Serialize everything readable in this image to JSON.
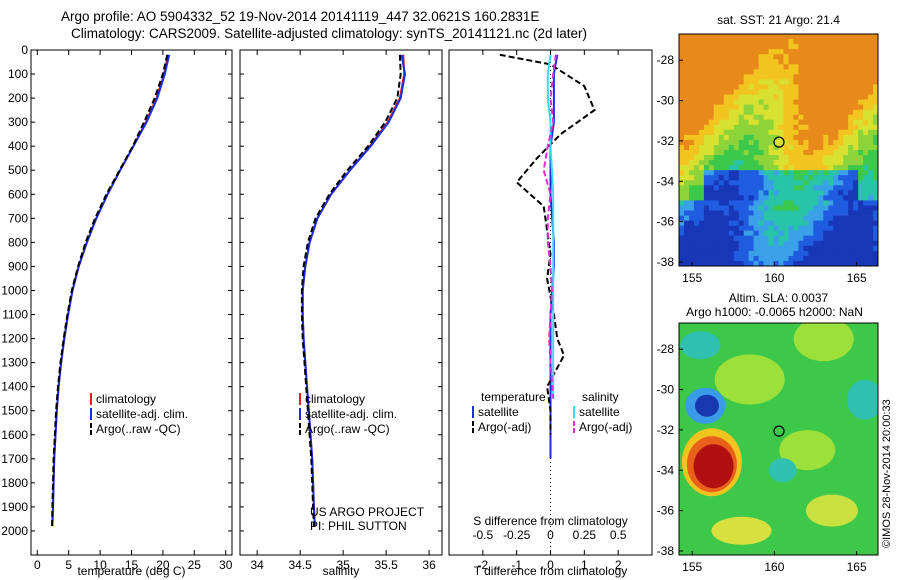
{
  "header": {
    "line1": "Argo profile: AO 5904332_52 19-Nov-2014 20141119_447 32.0621S 160.2831E",
    "line2": "Climatology: CARS2009. Satellite-adjusted climatology: synTS_20141121.nc (2d later)"
  },
  "colors": {
    "climatology": "#e02020",
    "satellite": "#1a2de0",
    "argo": "#000000",
    "sal_satellite": "#33e0f0",
    "sal_argo": "#e030d0"
  },
  "chart_data": [
    {
      "type": "line",
      "id": "temperature",
      "xlabel": "temperature (deg C)",
      "ylabel": "",
      "xlim": [
        -1,
        31
      ],
      "ylim": [
        0,
        2100
      ],
      "y_reversed": true,
      "xticks": [
        0,
        5,
        10,
        15,
        20,
        25,
        30
      ],
      "yticks": [
        0,
        100,
        200,
        300,
        400,
        500,
        600,
        700,
        800,
        900,
        1000,
        1100,
        1200,
        1300,
        1400,
        1500,
        1600,
        1700,
        1800,
        1900,
        2000
      ],
      "legend": [
        "climatology",
        "satellite-adj. clim.",
        "Argo(..raw -QC)"
      ],
      "legend_position": "lower-center",
      "series": [
        {
          "name": "climatology",
          "color": "#e02020",
          "style": "solid",
          "x": [
            20.8,
            20.2,
            19.0,
            17.3,
            15.3,
            13.2,
            11.2,
            9.4,
            7.9,
            6.6,
            5.6,
            4.9,
            4.3,
            3.8,
            3.4,
            3.1,
            2.9,
            2.7,
            2.6,
            2.5,
            2.4
          ],
          "y": [
            20,
            100,
            200,
            300,
            400,
            500,
            600,
            700,
            800,
            900,
            1000,
            1100,
            1200,
            1300,
            1400,
            1500,
            1600,
            1700,
            1800,
            1900,
            1980
          ]
        },
        {
          "name": "satellite-adj. clim.",
          "color": "#1a2de0",
          "style": "solid",
          "x": [
            21.0,
            20.3,
            19.1,
            17.4,
            15.3,
            13.2,
            11.2,
            9.4,
            7.9,
            6.6,
            5.6,
            4.9,
            4.3,
            3.8,
            3.4,
            3.1,
            2.9,
            2.7,
            2.6,
            2.5,
            2.4
          ],
          "y": [
            20,
            100,
            200,
            300,
            400,
            500,
            600,
            700,
            800,
            900,
            1000,
            1100,
            1200,
            1300,
            1400,
            1500,
            1600,
            1700,
            1800,
            1900,
            1980
          ]
        },
        {
          "name": "Argo(..raw -QC)",
          "color": "#000000",
          "style": "dashed",
          "x": [
            20.7,
            20.0,
            18.7,
            17.0,
            15.2,
            13.1,
            11.0,
            9.2,
            7.7,
            6.5,
            5.5,
            4.8,
            4.2,
            3.7,
            3.3,
            3.0,
            2.8,
            2.6,
            2.5,
            2.4,
            2.35
          ],
          "y": [
            20,
            100,
            200,
            300,
            400,
            500,
            600,
            700,
            800,
            900,
            1000,
            1100,
            1200,
            1300,
            1400,
            1500,
            1600,
            1700,
            1800,
            1900,
            1980
          ]
        }
      ]
    },
    {
      "type": "line",
      "id": "salinity",
      "xlabel": "salinity",
      "xlim": [
        33.8,
        36.15
      ],
      "ylim": [
        0,
        2100
      ],
      "y_reversed": true,
      "xticks": [
        34,
        34.5,
        35,
        35.5,
        36
      ],
      "legend": [
        "climatology",
        "satellite-adj. clim.",
        "Argo(..raw -QC)"
      ],
      "legend_position": "lower-center",
      "annotation": [
        "US ARGO PROJECT",
        "PI: PHIL SUTTON"
      ],
      "series": [
        {
          "name": "climatology",
          "color": "#e02020",
          "style": "solid",
          "x": [
            35.7,
            35.71,
            35.66,
            35.52,
            35.31,
            35.08,
            34.86,
            34.7,
            34.61,
            34.56,
            34.53,
            34.53,
            34.54,
            34.56,
            34.58,
            34.6,
            34.62,
            34.64,
            34.65,
            34.66,
            34.67
          ],
          "y": [
            20,
            100,
            200,
            300,
            400,
            500,
            600,
            700,
            800,
            900,
            1000,
            1100,
            1200,
            1300,
            1400,
            1500,
            1600,
            1700,
            1800,
            1900,
            1980
          ]
        },
        {
          "name": "satellite-adj. clim.",
          "color": "#1a2de0",
          "style": "solid",
          "x": [
            35.68,
            35.72,
            35.67,
            35.53,
            35.32,
            35.08,
            34.86,
            34.7,
            34.61,
            34.56,
            34.53,
            34.53,
            34.54,
            34.56,
            34.58,
            34.6,
            34.62,
            34.64,
            34.65,
            34.66,
            34.67
          ],
          "y": [
            20,
            100,
            200,
            300,
            400,
            500,
            600,
            700,
            800,
            900,
            1000,
            1100,
            1200,
            1300,
            1400,
            1500,
            1600,
            1700,
            1800,
            1900,
            1980
          ]
        },
        {
          "name": "Argo(..raw -QC)",
          "color": "#000000",
          "style": "dashed",
          "x": [
            35.66,
            35.67,
            35.63,
            35.49,
            35.29,
            35.05,
            34.84,
            34.68,
            34.59,
            34.54,
            34.52,
            34.52,
            34.53,
            34.55,
            34.57,
            34.59,
            34.61,
            34.63,
            34.64,
            34.65,
            34.66
          ],
          "y": [
            20,
            100,
            200,
            300,
            400,
            500,
            600,
            700,
            800,
            900,
            1000,
            1100,
            1200,
            1300,
            1400,
            1500,
            1600,
            1700,
            1800,
            1900,
            1980
          ]
        }
      ]
    },
    {
      "type": "line",
      "id": "differences",
      "xlabel": "T difference from climatology",
      "xlabel_top": "S difference from climatology",
      "xlim": [
        -3,
        3
      ],
      "xticks": [
        -2,
        -1,
        0,
        1,
        2
      ],
      "xtick_labels": [
        "-2",
        "-1",
        "0",
        "1",
        "2"
      ],
      "xticks_s": [
        -0.5,
        -0.25,
        0,
        0.25,
        0.5
      ],
      "xticks_s_labels": [
        "-0.5",
        "-0.25",
        "0",
        "0.25",
        "0.5"
      ],
      "ylim": [
        0,
        2100
      ],
      "y_reversed": true,
      "legend_groups": [
        {
          "title": "temperature",
          "entries": [
            "satellite",
            "Argo(-adj)"
          ]
        },
        {
          "title": "salinity",
          "entries": [
            "satellite",
            "Argo(-adj)"
          ]
        }
      ],
      "series": [
        {
          "name": "temperature satellite",
          "color": "#1a2de0",
          "style": "solid",
          "x": [
            0.2,
            0.1,
            0.1,
            0.1,
            0.0,
            0.0,
            0.0,
            0.05,
            0.1,
            0.1,
            0.05,
            0.0,
            0.0,
            0.0,
            0.0,
            0.0,
            0.0,
            0.0
          ],
          "y": [
            20,
            100,
            200,
            300,
            400,
            500,
            600,
            700,
            800,
            900,
            1000,
            1100,
            1200,
            1300,
            1400,
            1500,
            1600,
            1700
          ]
        },
        {
          "name": "temperature Argo(-adj)",
          "color": "#000000",
          "style": "dashed",
          "x": [
            -1.5,
            0.0,
            1.0,
            1.3,
            0.3,
            -0.4,
            -1.0,
            -0.2,
            -0.1,
            0.0,
            -0.1,
            0.1,
            0.2,
            0.4,
            -0.1,
            0.0,
            0.0
          ],
          "y": [
            20,
            60,
            150,
            250,
            350,
            450,
            550,
            650,
            750,
            850,
            950,
            1100,
            1200,
            1270,
            1400,
            1500,
            1600
          ]
        },
        {
          "name": "salinity satellite",
          "color": "#33e0f0",
          "style": "solid",
          "x": [
            0.0,
            -0.02,
            -0.02,
            0.0,
            0.0,
            0.01,
            0.02,
            0.02,
            0.02,
            0.02,
            0.02,
            0.02,
            0.02,
            0.02,
            0.02
          ],
          "y": [
            20,
            100,
            200,
            300,
            400,
            500,
            600,
            700,
            800,
            900,
            1000,
            1100,
            1200,
            1300,
            1450
          ]
        },
        {
          "name": "salinity Argo(-adj)",
          "color": "#e030d0",
          "style": "dashed",
          "x": [
            0.04,
            0.02,
            0.0,
            0.02,
            -0.02,
            -0.05,
            0.0,
            -0.02,
            -0.02,
            0.0,
            0.01,
            0.0,
            -0.01,
            0.0,
            0.02
          ],
          "y": [
            20,
            100,
            200,
            300,
            400,
            500,
            600,
            700,
            800,
            900,
            1000,
            1100,
            1200,
            1300,
            1450
          ]
        }
      ]
    },
    {
      "type": "heatmap",
      "id": "sst_map",
      "title": "sat. SST: 21  Argo: 21.4",
      "xlim": [
        154.2,
        166.3
      ],
      "ylim": [
        -38.2,
        -26.7
      ],
      "xticks": [
        155,
        160,
        165
      ],
      "yticks": [
        -28,
        -30,
        -32,
        -34,
        -36,
        -38
      ],
      "marker": {
        "lon": 160.28,
        "lat": -32.06
      }
    },
    {
      "type": "heatmap",
      "id": "sla_map",
      "title": "Altim. SLA: 0.0037",
      "subtitle": "Argo h1000: -0.0065 h2000: NaN",
      "xlim": [
        154.2,
        166.3
      ],
      "ylim": [
        -38.2,
        -26.7
      ],
      "xticks": [
        155,
        160,
        165
      ],
      "yticks": [
        -28,
        -30,
        -32,
        -34,
        -36,
        -38
      ],
      "marker": {
        "lon": 160.28,
        "lat": -32.06
      }
    }
  ],
  "credit": "©IMOS 28-Nov-2014 20:00:33"
}
